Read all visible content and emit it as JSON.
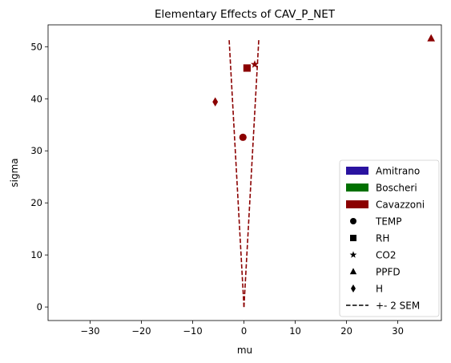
{
  "chart_data": {
    "type": "scatter",
    "title": "Elementary Effects of CAV_P_NET",
    "xlabel": "mu",
    "ylabel": "sigma",
    "xlim": [
      -38.2,
      38.5
    ],
    "ylim": [
      -2.6,
      54.2
    ],
    "xticks": [
      -30,
      -20,
      -10,
      0,
      10,
      20,
      30
    ],
    "yticks": [
      0,
      10,
      20,
      30,
      40,
      50
    ],
    "grid": false,
    "legend_position": "lower-right",
    "colors": {
      "Amitrano": "#2a13a0",
      "Boscheri": "#007000",
      "Cavazzoni": "#8b0000"
    },
    "legend": {
      "models": [
        "Amitrano",
        "Boscheri",
        "Cavazzoni"
      ],
      "parameters": [
        {
          "label": "TEMP",
          "marker": "circle"
        },
        {
          "label": "RH",
          "marker": "square"
        },
        {
          "label": "CO2",
          "marker": "star"
        },
        {
          "label": "PPFD",
          "marker": "triangle"
        },
        {
          "label": "H",
          "marker": "diamond"
        }
      ],
      "sem_label": "+- 2 SEM"
    },
    "points": [
      {
        "model": "Cavazzoni",
        "parameter": "TEMP",
        "x": -0.2,
        "y": 32.6,
        "marker": "circle"
      },
      {
        "model": "Cavazzoni",
        "parameter": "RH",
        "x": 0.6,
        "y": 45.9,
        "marker": "square"
      },
      {
        "model": "Cavazzoni",
        "parameter": "CO2",
        "x": 2.1,
        "y": 46.6,
        "marker": "star"
      },
      {
        "model": "Cavazzoni",
        "parameter": "PPFD",
        "x": 36.5,
        "y": 51.6,
        "marker": "triangle"
      },
      {
        "model": "Cavazzoni",
        "parameter": "H",
        "x": -5.6,
        "y": 39.4,
        "marker": "diamond"
      }
    ],
    "sem_lines": [
      {
        "model": "Cavazzoni",
        "name": "+2 SEM",
        "points": [
          [
            0,
            0
          ],
          [
            2.9,
            51.5
          ]
        ]
      },
      {
        "model": "Cavazzoni",
        "name": "-2 SEM",
        "points": [
          [
            0,
            0
          ],
          [
            -2.9,
            51.5
          ]
        ]
      }
    ]
  }
}
